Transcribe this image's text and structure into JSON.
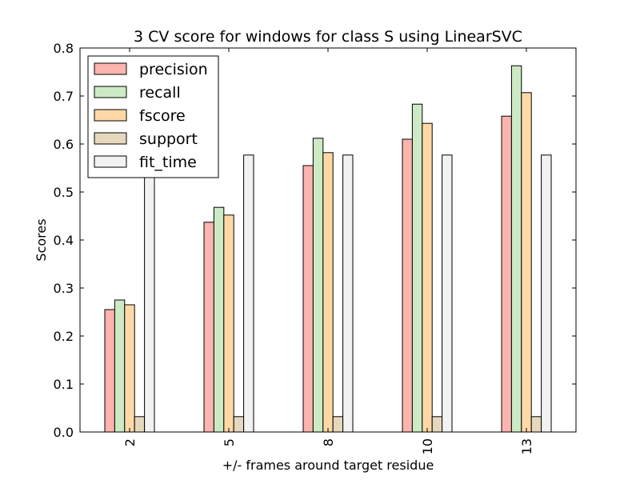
{
  "chart_data": {
    "type": "bar",
    "title": "3 CV score for windows for class S using LinearSVC",
    "xlabel": "+/- frames around target residue",
    "ylabel": "Scores",
    "categories": [
      "2",
      "5",
      "8",
      "10",
      "13"
    ],
    "ylim": [
      0.0,
      0.8
    ],
    "yticks": [
      "0.0",
      "0.1",
      "0.2",
      "0.3",
      "0.4",
      "0.5",
      "0.6",
      "0.7",
      "0.8"
    ],
    "grid": false,
    "legend_position": "top-left",
    "series": [
      {
        "name": "precision",
        "color": "#fbb4ae",
        "values": [
          0.255,
          0.437,
          0.555,
          0.61,
          0.658
        ]
      },
      {
        "name": "recall",
        "color": "#ccebc5",
        "values": [
          0.275,
          0.468,
          0.612,
          0.683,
          0.763
        ]
      },
      {
        "name": "fscore",
        "color": "#fed9a6",
        "values": [
          0.265,
          0.452,
          0.582,
          0.643,
          0.707
        ]
      },
      {
        "name": "support",
        "color": "#e5d8bd",
        "values": [
          0.032,
          0.032,
          0.032,
          0.032,
          0.032
        ]
      },
      {
        "name": "fit_time",
        "color": "#f2f2f2",
        "values": [
          0.577,
          0.577,
          0.577,
          0.577,
          0.577
        ]
      }
    ]
  }
}
